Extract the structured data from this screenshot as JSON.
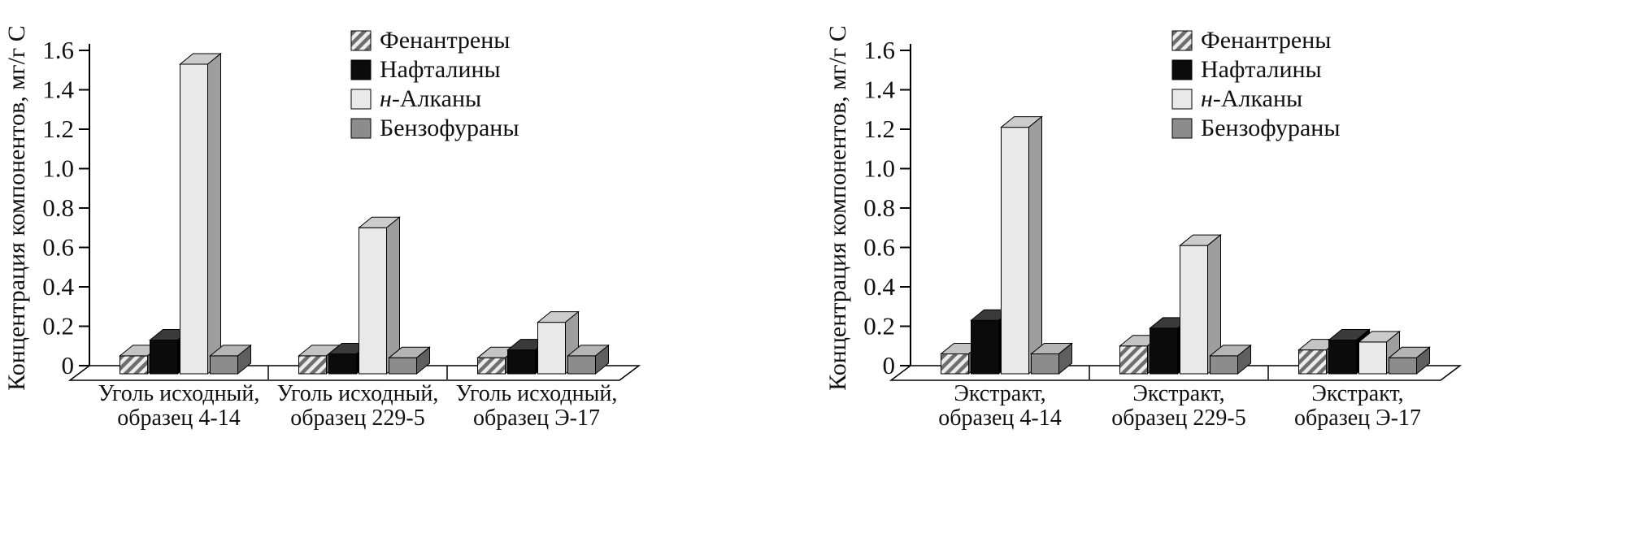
{
  "figure": {
    "background": "#ffffff",
    "text_color": "#111111",
    "panel_count": 2
  },
  "chart_data": [
    {
      "type": "bar",
      "style": "3d-column",
      "title": "",
      "xlabel": "",
      "ylabel": "Концентрация компонентов, мг/г С",
      "ylim": [
        0,
        1.6
      ],
      "yticks": [
        "0",
        "0.2",
        "0.4",
        "0.6",
        "0.8",
        "1.0",
        "1.2",
        "1.4",
        "1.6"
      ],
      "grid": false,
      "legend_position": "top-right",
      "categories": [
        "Уголь исходный,\nобразец 4-14",
        "Уголь исходный,\nобразец 229-5",
        "Уголь исходный,\nобразец Э-17"
      ],
      "series": [
        {
          "name": "Фенантрены",
          "pattern": "hatch",
          "color": "#d9d9d9",
          "top": "#c4c4c4",
          "side": "#5a5a5a",
          "values": [
            0.05,
            0.05,
            0.04
          ]
        },
        {
          "name": "Нафталины",
          "pattern": "solid",
          "color": "#0b0b0b",
          "top": "#3a3a3a",
          "side": "#000000",
          "values": [
            0.13,
            0.06,
            0.08
          ]
        },
        {
          "name": "н-Алканы",
          "pattern": "solid",
          "color": "#e9e9e9",
          "top": "#cccccc",
          "side": "#9e9e9e",
          "values": [
            1.53,
            0.7,
            0.22
          ]
        },
        {
          "name": "Бензофураны",
          "pattern": "solid",
          "color": "#8c8c8c",
          "top": "#b5b5b5",
          "side": "#5f5f5f",
          "values": [
            0.05,
            0.04,
            0.05
          ]
        }
      ]
    },
    {
      "type": "bar",
      "style": "3d-column",
      "title": "",
      "xlabel": "",
      "ylabel": "Концентрация компонентов, мг/г С",
      "ylim": [
        0,
        1.6
      ],
      "yticks": [
        "0",
        "0.2",
        "0.4",
        "0.6",
        "0.8",
        "1.0",
        "1.2",
        "1.4",
        "1.6"
      ],
      "grid": false,
      "legend_position": "top-right",
      "categories": [
        "Экстракт,\nобразец 4-14",
        "Экстракт,\nобразец 229-5",
        "Экстракт,\nобразец Э-17"
      ],
      "series": [
        {
          "name": "Фенантрены",
          "pattern": "hatch",
          "color": "#d9d9d9",
          "top": "#c4c4c4",
          "side": "#5a5a5a",
          "values": [
            0.06,
            0.1,
            0.08
          ]
        },
        {
          "name": "Нафталины",
          "pattern": "solid",
          "color": "#0b0b0b",
          "top": "#3a3a3a",
          "side": "#000000",
          "values": [
            0.23,
            0.19,
            0.13
          ]
        },
        {
          "name": "н-Алканы",
          "pattern": "solid",
          "color": "#e9e9e9",
          "top": "#cccccc",
          "side": "#9e9e9e",
          "values": [
            1.21,
            0.61,
            0.12
          ]
        },
        {
          "name": "Бензофураны",
          "pattern": "solid",
          "color": "#8c8c8c",
          "top": "#b5b5b5",
          "side": "#5f5f5f",
          "values": [
            0.06,
            0.05,
            0.04
          ]
        }
      ]
    }
  ]
}
